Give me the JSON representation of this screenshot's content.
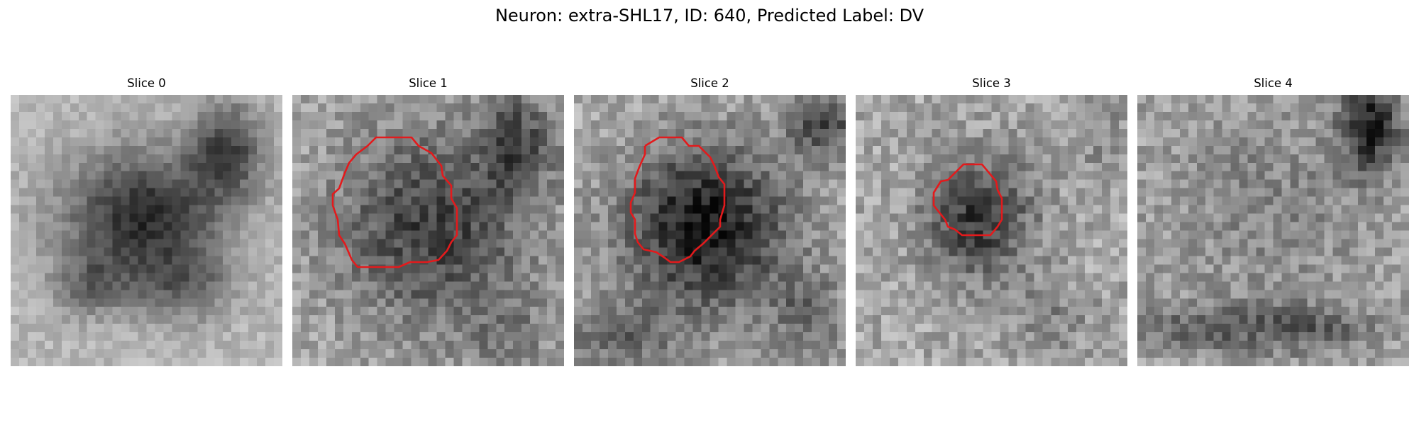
{
  "figure": {
    "title": "Neuron: extra-SHL17, ID: 640, Predicted Label: DV"
  },
  "slices": [
    {
      "title": "Slice 0",
      "has_contour": false
    },
    {
      "title": "Slice 1",
      "has_contour": true
    },
    {
      "title": "Slice 2",
      "has_contour": true
    },
    {
      "title": "Slice 3",
      "has_contour": true
    },
    {
      "title": "Slice 4",
      "has_contour": false
    }
  ],
  "colors": {
    "contour": "#e31a1c",
    "background": "#ffffff"
  },
  "image": {
    "colormap": "gray",
    "grid_size": 32
  }
}
